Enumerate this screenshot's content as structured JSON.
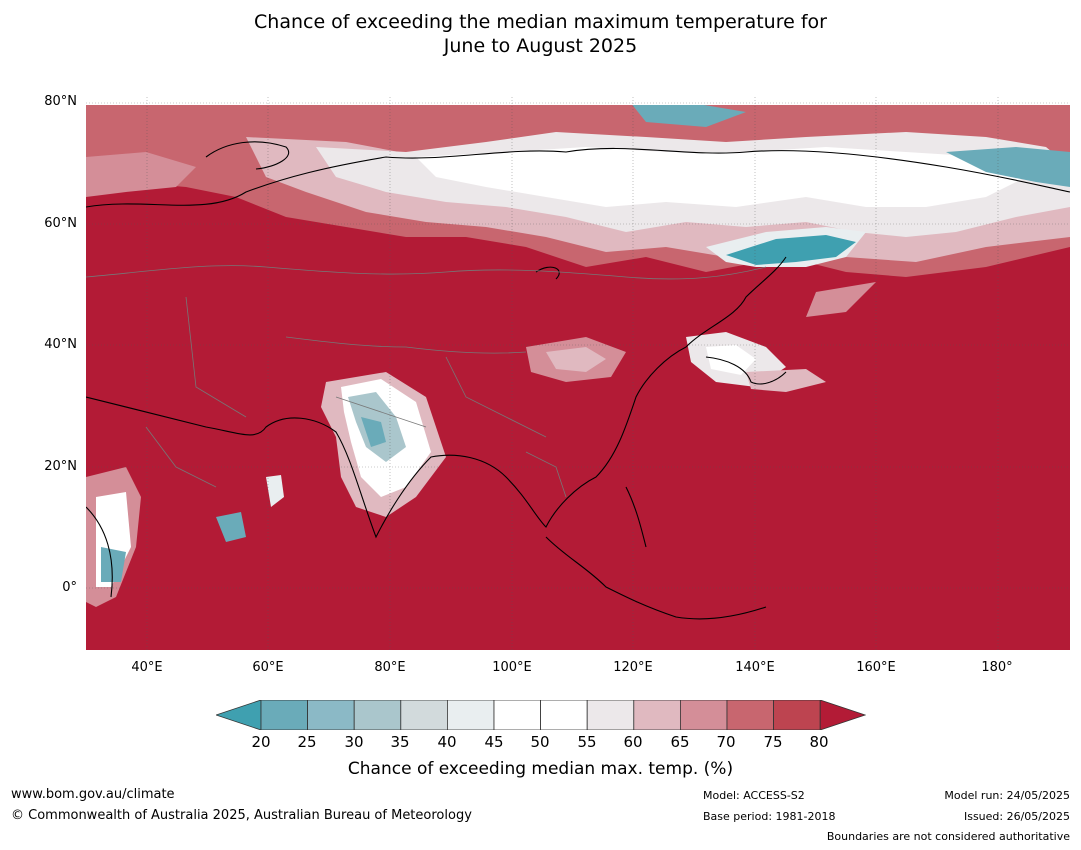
{
  "title": {
    "line1": "Chance of exceeding the median maximum temperature for",
    "line2": "June to August 2025"
  },
  "map": {
    "lat_labels": [
      "80°N",
      "60°N",
      "40°N",
      "20°N",
      "0°"
    ],
    "lon_labels": [
      "40°E",
      "60°E",
      "80°E",
      "100°E",
      "120°E",
      "140°E",
      "160°E",
      "180°"
    ],
    "extent": {
      "lon_min": 30,
      "lon_max": 192,
      "lat_min": -10,
      "lat_max": 81
    }
  },
  "colorbar": {
    "title": "Chance of exceeding median max. temp. (%)",
    "ticks": [
      "20",
      "25",
      "30",
      "35",
      "40",
      "45",
      "50",
      "55",
      "60",
      "65",
      "70",
      "75",
      "80"
    ],
    "colors": {
      "below_20": "#3fa0b0",
      "20_25": "#6aabb9",
      "25_30": "#8bb9c6",
      "30_35": "#aac6cc",
      "35_40": "#d2dadc",
      "40_45": "#e9eef0",
      "45_50": "#ffffff",
      "50_55": "#ffffff",
      "55_60": "#ece8ea",
      "60_65": "#e0b9c0",
      "65_70": "#d48e98",
      "70_75": "#c8666f",
      "75_80": "#bd4450",
      "above_80": "#b31b36"
    }
  },
  "footer": {
    "website": "www.bom.gov.au/climate",
    "copyright": "© Commonwealth of Australia 2025, Australian Bureau of Meteorology",
    "model": "Model: ACCESS-S2",
    "base_period": "Base period: 1981-2018",
    "model_run": "Model run: 24/05/2025",
    "issued": "Issued: 26/05/2025",
    "disclaimer": "Boundaries are not considered authoritative"
  }
}
